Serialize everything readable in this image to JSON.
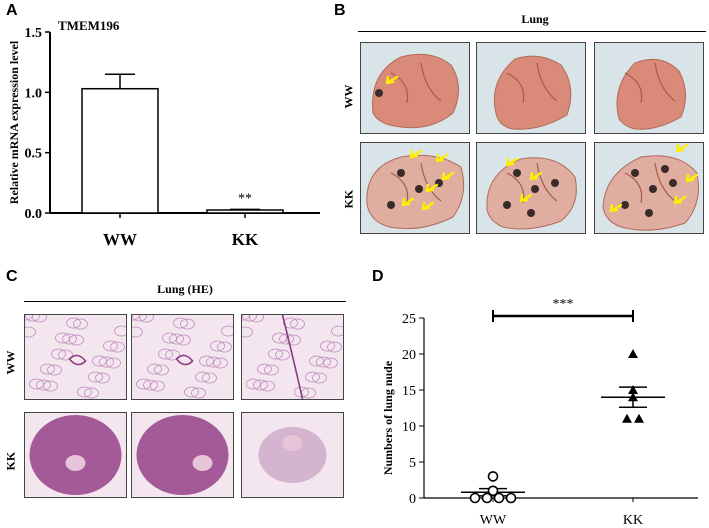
{
  "panels": {
    "a": {
      "label": "A"
    },
    "b": {
      "label": "B"
    },
    "c": {
      "label": "C"
    },
    "d": {
      "label": "D"
    }
  },
  "lung_photos": {
    "title": "Lung",
    "row_top": "WW",
    "row_bottom": "KK"
  },
  "lung_he": {
    "title": "Lung (HE)",
    "row_top": "WW",
    "row_bottom": "KK"
  },
  "colors": {
    "arrow": "#ffee00",
    "tissue": "#d99a8a",
    "he_stain": "#9b4a8f"
  },
  "chart_data": [
    {
      "id": "panel-a",
      "type": "bar",
      "title": "TMEM196",
      "ylabel": "Relative mRNA expression level",
      "categories": [
        "WW",
        "KK"
      ],
      "values": [
        1.03,
        0.02
      ],
      "errors": [
        0.12,
        0.01
      ],
      "ylim": [
        0,
        1.5
      ],
      "yticks": [
        "0.0",
        "0.5",
        "1.0",
        "1.5"
      ],
      "annotation": "**"
    },
    {
      "id": "panel-d",
      "type": "scatter",
      "ylabel": "Numbers of lung nude",
      "categories": [
        "WW",
        "KK"
      ],
      "series": [
        {
          "group": "WW",
          "marker": "circle-open",
          "values": [
            3,
            1,
            0,
            0,
            0,
            0
          ],
          "mean": 0.8,
          "sem": 0.5
        },
        {
          "group": "KK",
          "marker": "triangle-filled",
          "values": [
            20,
            15,
            14,
            11,
            11
          ],
          "mean": 14,
          "sem": 1.4
        }
      ],
      "ylim": [
        0,
        25
      ],
      "yticks": [
        "0",
        "5",
        "10",
        "15",
        "20",
        "25"
      ],
      "annotation": "***"
    }
  ]
}
